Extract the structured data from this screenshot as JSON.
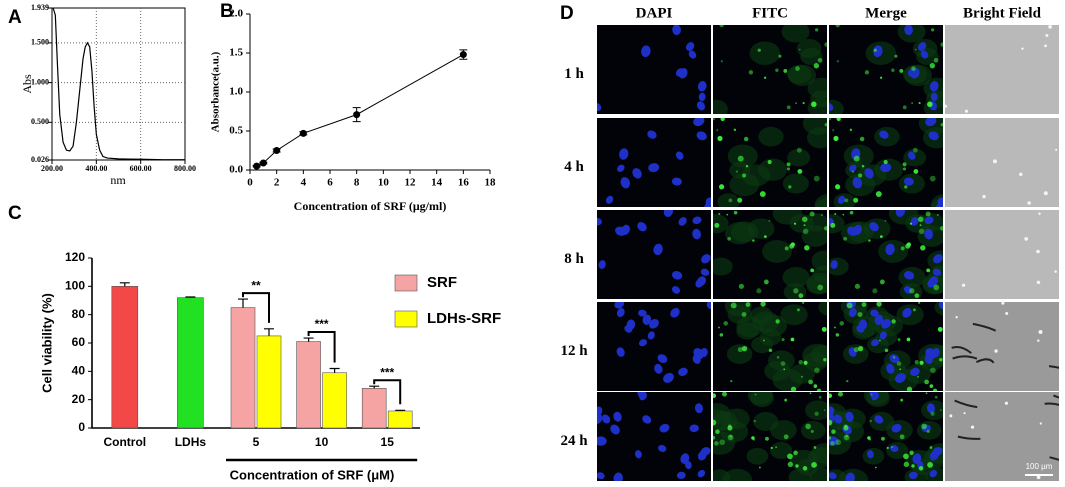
{
  "chart_data": [
    {
      "type": "line",
      "label": "A",
      "xlabel": "nm",
      "ylabel": "Abs",
      "frame": true,
      "grid": true,
      "color": "#000000",
      "x": [
        205,
        215,
        225,
        235,
        250,
        265,
        280,
        295,
        310,
        325,
        340,
        350,
        360,
        370,
        380,
        390,
        400,
        415,
        430,
        450,
        500,
        600,
        700,
        800
      ],
      "values": [
        1.939,
        1.85,
        1.2,
        0.6,
        0.25,
        0.15,
        0.14,
        0.2,
        0.5,
        0.9,
        1.3,
        1.45,
        1.5,
        1.45,
        1.15,
        0.7,
        0.35,
        0.15,
        0.07,
        0.05,
        0.04,
        0.035,
        0.03,
        0.03
      ],
      "xlim": [
        200,
        800
      ],
      "xticks": [
        {
          "value": 200,
          "label": "200.00"
        },
        {
          "value": 400,
          "label": "400.00"
        },
        {
          "value": 600,
          "label": "600.00"
        },
        {
          "value": 800,
          "label": "800.00"
        }
      ],
      "ylim": [
        0.026,
        1.939
      ],
      "yticks": [
        0.026,
        {
          "value": 0.5,
          "label": "0.500"
        },
        {
          "value": 1,
          "label": "1.000"
        },
        {
          "value": 1.5,
          "label": "1.500"
        },
        1.939
      ]
    },
    {
      "type": "line",
      "label": "B",
      "xlabel": "Concentration of SRF (μg/ml)",
      "ylabel": "Absorbance(a.u.)",
      "markers": true,
      "color": "#000000",
      "x": [
        0.5,
        1,
        2,
        4,
        8,
        16
      ],
      "values": [
        0.05,
        0.09,
        0.25,
        0.47,
        0.71,
        1.48
      ],
      "errors": [
        0.01,
        0.01,
        0.02,
        0.02,
        0.09,
        0.06
      ],
      "xlim": [
        0,
        18
      ],
      "xticks": [
        0,
        2,
        4,
        6,
        8,
        10,
        12,
        14,
        16,
        18
      ],
      "ylim": [
        0,
        2
      ],
      "yticks": [
        {
          "value": 0,
          "label": "0.0"
        },
        0.5,
        {
          "value": 1,
          "label": "1.0"
        },
        1.5,
        {
          "value": 2,
          "label": "2.0"
        }
      ]
    },
    {
      "type": "bar",
      "label": "C",
      "xlabel": "Concentration of SRF  (μM)",
      "ylabel": "Cell viability (%)",
      "legend": "upper right",
      "categories": [
        "Control",
        "LDHs",
        "5",
        "10",
        "15"
      ],
      "values": [
        100,
        92,
        null,
        null,
        null
      ],
      "errors": [
        2.5,
        0.5,
        null,
        null,
        null
      ],
      "colors": [
        "#f24848",
        "#22e022",
        null,
        null,
        null
      ],
      "series": [
        {
          "name": "SRF",
          "color": "#f5a3a3",
          "values": [
            null,
            null,
            85,
            61,
            28
          ],
          "errors": [
            null,
            null,
            6,
            2.5,
            1.5
          ]
        },
        {
          "name": "LDHs-SRF",
          "color": "#ffff00",
          "values": [
            null,
            null,
            65,
            39,
            12
          ],
          "errors": [
            null,
            null,
            5,
            3,
            0.5
          ]
        }
      ],
      "annotations": [
        "**",
        "***",
        "***"
      ],
      "ylim": [
        0,
        120
      ],
      "yticks": [
        0,
        20,
        40,
        60,
        80,
        100,
        120
      ]
    }
  ],
  "panel_d": {
    "label": "D",
    "columns": [
      "DAPI",
      "FITC",
      "Merge",
      "Bright Field"
    ],
    "rows": [
      "1 h",
      "4 h",
      "8 h",
      "12 h",
      "24 h"
    ],
    "scale_bar": "100 μm"
  }
}
